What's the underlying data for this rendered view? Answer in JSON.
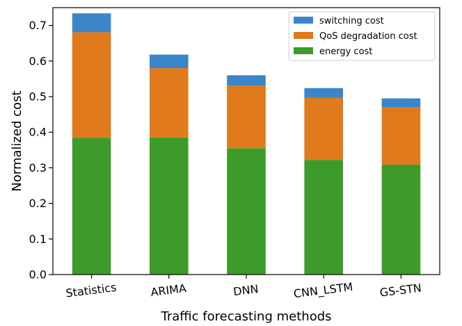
{
  "chart_data": {
    "type": "bar",
    "stacked": true,
    "title": "",
    "xlabel": "Traffic forecasting methods",
    "ylabel": "Normalized cost",
    "categories": [
      "Statistics",
      "ARIMA",
      "DNN",
      "CNN_LSTM",
      "GS-STN"
    ],
    "ylim": [
      0.0,
      0.75
    ],
    "yticks": [
      0.0,
      0.1,
      0.2,
      0.3,
      0.4,
      0.5,
      0.6,
      0.7
    ],
    "ytick_labels": [
      "0.0",
      "0.1",
      "0.2",
      "0.3",
      "0.4",
      "0.5",
      "0.6",
      "0.7"
    ],
    "grid": false,
    "legend_position": "top-right",
    "series": [
      {
        "name": "energy cost",
        "color": "#3c9b2a",
        "values": [
          0.384,
          0.385,
          0.355,
          0.322,
          0.309
        ]
      },
      {
        "name": "QoS degradation cost",
        "color": "#e07a1c",
        "values": [
          0.297,
          0.195,
          0.176,
          0.175,
          0.161
        ]
      },
      {
        "name": "switching cost",
        "color": "#3a86c8",
        "values": [
          0.053,
          0.038,
          0.029,
          0.027,
          0.025
        ]
      }
    ],
    "legend_order": [
      "switching cost",
      "QoS degradation cost",
      "energy cost"
    ]
  }
}
